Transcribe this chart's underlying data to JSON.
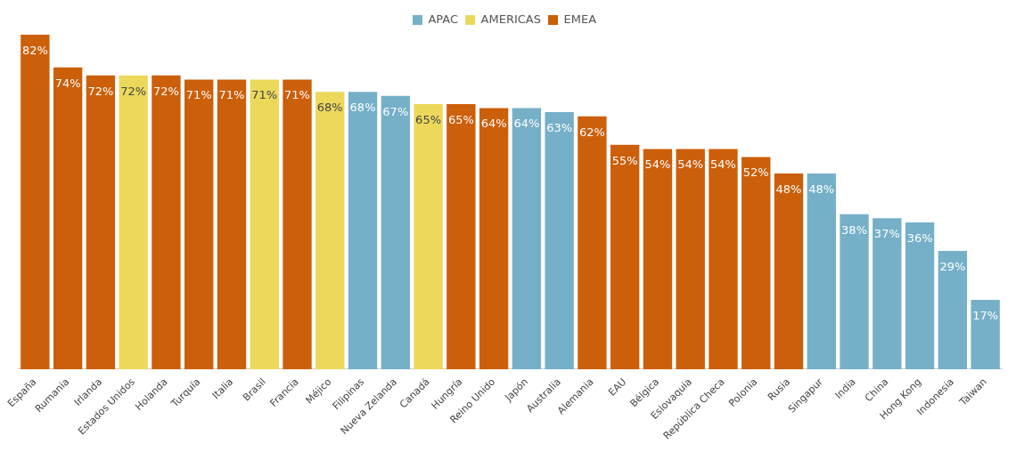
{
  "chart_data": {
    "type": "bar",
    "legend": "top",
    "grid": false,
    "categories": [
      "España",
      "Rumania",
      "Irlanda",
      "Estados Unidos",
      "Holanda",
      "Turquía",
      "Italia",
      "Brasil",
      "Francia",
      "Méjico",
      "Filipinas",
      "Nueva Zelanda",
      "Canadá",
      "Hungría",
      "Reino Unido",
      "Japón",
      "Australia",
      "Alemania",
      "EAU",
      "Bélgica",
      "Eslovaquia",
      "República Checa",
      "Polonia",
      "Rusia",
      "Singapur",
      "India",
      "China",
      "Hong Kong",
      "Indonesia",
      "Taiwan"
    ],
    "series": [
      {
        "name": "APAC",
        "color": "#75b0c8",
        "values": [
          null,
          null,
          null,
          null,
          null,
          null,
          null,
          null,
          null,
          null,
          68,
          67,
          null,
          null,
          null,
          64,
          63,
          null,
          null,
          null,
          null,
          null,
          null,
          null,
          48,
          38,
          37,
          36,
          29,
          17
        ],
        "value_labels": [
          null,
          null,
          null,
          null,
          null,
          null,
          null,
          null,
          null,
          null,
          "68%",
          "67%",
          null,
          null,
          null,
          "64%",
          "63%",
          null,
          null,
          null,
          null,
          null,
          null,
          null,
          "48%",
          "38%",
          "37%",
          "36%",
          "29%",
          "17%"
        ]
      },
      {
        "name": "AMERICAS",
        "color": "#ecd85b",
        "values": [
          null,
          null,
          null,
          72,
          null,
          null,
          null,
          71,
          null,
          68,
          null,
          null,
          65,
          null,
          null,
          null,
          null,
          null,
          null,
          null,
          null,
          null,
          null,
          null,
          null,
          null,
          null,
          null,
          null,
          null
        ],
        "value_labels": [
          null,
          null,
          null,
          "72%",
          null,
          null,
          null,
          "71%",
          null,
          "68%",
          null,
          null,
          "65%",
          null,
          null,
          null,
          null,
          null,
          null,
          null,
          null,
          null,
          null,
          null,
          null,
          null,
          null,
          null,
          null,
          null
        ]
      },
      {
        "name": "EMEA",
        "color": "#cc5f0a",
        "values": [
          82,
          74,
          72,
          null,
          72,
          71,
          71,
          null,
          71,
          null,
          null,
          null,
          null,
          65,
          64,
          null,
          null,
          62,
          55,
          54,
          54,
          54,
          52,
          48,
          null,
          null,
          null,
          null,
          null,
          null
        ],
        "value_labels": [
          "82%",
          "74%",
          "72%",
          null,
          "72%",
          "71%",
          "71%",
          null,
          "71%",
          null,
          null,
          null,
          null,
          "65%",
          "64%",
          null,
          null,
          "62%",
          "55%",
          "54%",
          "54%",
          "54%",
          "52%",
          "48%",
          null,
          null,
          null,
          null,
          null,
          null
        ]
      }
    ]
  }
}
